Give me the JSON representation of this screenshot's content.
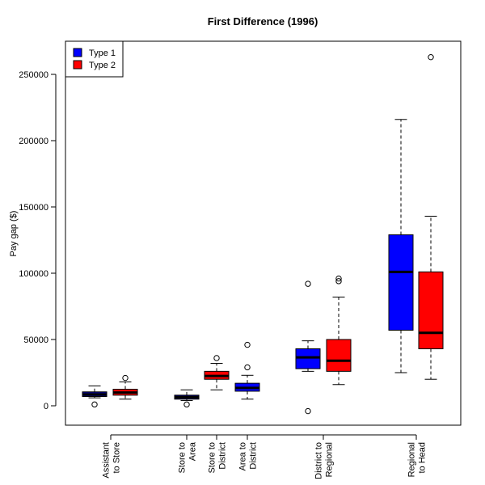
{
  "chart_data": {
    "type": "boxplot",
    "title": "First Difference (1996)",
    "xlabel": "",
    "ylabel": "Pay gap ($)",
    "ylim": [
      -15000,
      275000
    ],
    "yticks": [
      0,
      50000,
      100000,
      150000,
      200000,
      250000
    ],
    "legend": {
      "position": "top-left",
      "entries": [
        {
          "name": "Type 1",
          "color": "#0000ff"
        },
        {
          "name": "Type 2",
          "color": "#ff0000"
        }
      ]
    },
    "groups": [
      {
        "label_lines": [
          "Assistant",
          "to Store"
        ],
        "boxes": [
          {
            "series": "Type 1",
            "color": "#00008b",
            "whisker_low": 6000,
            "q1": 7000,
            "median": 8500,
            "q3": 10500,
            "whisker_high": 15000,
            "outliers": [
              1000
            ]
          },
          {
            "series": "Type 2",
            "color": "#ff0000",
            "whisker_low": 5000,
            "q1": 8000,
            "median": 10000,
            "q3": 12500,
            "whisker_high": 18000,
            "outliers": [
              21000
            ]
          }
        ]
      },
      {
        "label_lines": [
          "Store to",
          "Area"
        ],
        "boxes": [
          {
            "series": "Type 1",
            "color": "#00008b",
            "whisker_low": 4000,
            "q1": 5000,
            "median": 6500,
            "q3": 8000,
            "whisker_high": 12000,
            "outliers": [
              1000
            ]
          }
        ]
      },
      {
        "label_lines": [
          "Store to",
          "District"
        ],
        "boxes": [
          {
            "series": "Type 2",
            "color": "#ff0000",
            "whisker_low": 12000,
            "q1": 20000,
            "median": 22500,
            "q3": 26000,
            "whisker_high": 32000,
            "outliers": [
              36000
            ]
          }
        ]
      },
      {
        "label_lines": [
          "Area to",
          "District"
        ],
        "boxes": [
          {
            "series": "Type 1",
            "color": "#0000ff",
            "whisker_low": 5000,
            "q1": 11000,
            "median": 13500,
            "q3": 17000,
            "whisker_high": 23000,
            "outliers": [
              29000,
              46000
            ]
          }
        ]
      },
      {
        "label_lines": [
          "District to",
          "Regional"
        ],
        "boxes": [
          {
            "series": "Type 1",
            "color": "#0000ff",
            "whisker_low": 26000,
            "q1": 28000,
            "median": 36500,
            "q3": 43000,
            "whisker_high": 49000,
            "outliers": [
              92000,
              -4000
            ]
          },
          {
            "series": "Type 2",
            "color": "#ff0000",
            "whisker_low": 16000,
            "q1": 26000,
            "median": 34000,
            "q3": 50000,
            "whisker_high": 82000,
            "outliers": [
              94000,
              96000
            ]
          }
        ]
      },
      {
        "label_lines": [
          "Regional",
          "to Head"
        ],
        "boxes": [
          {
            "series": "Type 1",
            "color": "#0000ff",
            "whisker_low": 25000,
            "q1": 57000,
            "median": 101000,
            "q3": 129000,
            "whisker_high": 216000,
            "outliers": []
          },
          {
            "series": "Type 2",
            "color": "#ff0000",
            "whisker_low": 20000,
            "q1": 43000,
            "median": 55000,
            "q3": 101000,
            "whisker_high": 143000,
            "outliers": [
              263000
            ]
          }
        ]
      }
    ]
  }
}
